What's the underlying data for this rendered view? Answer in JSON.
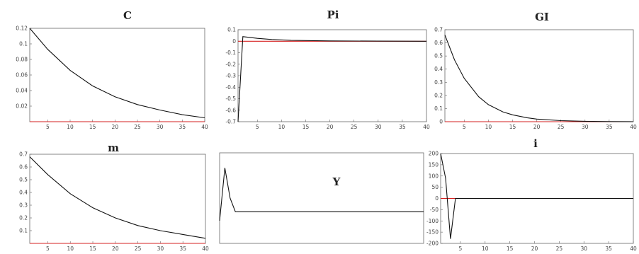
{
  "colors": {
    "steady_state": "#d62020",
    "response": "#111111"
  },
  "chart_data": [
    {
      "type": "line",
      "title": "C",
      "xlim": [
        1,
        40
      ],
      "ylim": [
        0,
        0.12
      ],
      "xticks": [
        5,
        10,
        15,
        20,
        25,
        30,
        35,
        40
      ],
      "yticks": [
        0.02,
        0.04,
        0.06,
        0.08,
        0.1,
        0.12
      ],
      "ytick_labels": [
        "0.02",
        "0.04",
        "0.06",
        "0.08",
        "0.1",
        "0.12"
      ],
      "series": [
        {
          "color": "#d62020",
          "x": [
            1,
            40
          ],
          "y": [
            0,
            0
          ]
        },
        {
          "color": "#111111",
          "x": [
            1,
            5,
            10,
            15,
            20,
            25,
            30,
            35,
            40
          ],
          "y": [
            0.12,
            0.093,
            0.066,
            0.046,
            0.032,
            0.022,
            0.015,
            0.009,
            0.005
          ]
        }
      ]
    },
    {
      "type": "line",
      "title": "Pi",
      "xlim": [
        1,
        40
      ],
      "ylim": [
        -0.7,
        0.1
      ],
      "xticks": [
        5,
        10,
        15,
        20,
        25,
        30,
        35,
        40
      ],
      "yticks": [
        0.1,
        0,
        -0.1,
        -0.2,
        -0.3,
        -0.4,
        -0.5,
        -0.6,
        -0.7
      ],
      "ytick_labels": [
        "0.1",
        "0",
        "-0.1",
        "-0.2",
        "-0.3",
        "-0.4",
        "-0.5",
        "-0.6",
        "-0.7"
      ],
      "series": [
        {
          "color": "#d62020",
          "x": [
            1,
            40
          ],
          "y": [
            0,
            0
          ]
        },
        {
          "color": "#111111",
          "x": [
            1,
            2,
            3,
            5,
            8,
            12,
            20,
            30,
            40
          ],
          "y": [
            -0.7,
            0.04,
            0.035,
            0.025,
            0.015,
            0.008,
            0.003,
            0.001,
            0
          ]
        }
      ]
    },
    {
      "type": "line",
      "title": "GI",
      "xlim": [
        1,
        40
      ],
      "ylim": [
        0,
        0.7
      ],
      "xticks": [
        5,
        10,
        15,
        20,
        25,
        30,
        35,
        40
      ],
      "yticks": [
        0,
        0.1,
        0.2,
        0.3,
        0.4,
        0.5,
        0.6,
        0.7
      ],
      "ytick_labels": [
        "0",
        "0.1",
        "0.2",
        "0.3",
        "0.4",
        "0.5",
        "0.6",
        "0.7"
      ],
      "series": [
        {
          "color": "#d62020",
          "x": [
            1,
            40
          ],
          "y": [
            0,
            0
          ]
        },
        {
          "color": "#111111",
          "x": [
            1,
            3,
            5,
            8,
            10,
            13,
            15,
            18,
            20,
            25,
            30,
            35,
            40
          ],
          "y": [
            0.66,
            0.47,
            0.33,
            0.19,
            0.13,
            0.075,
            0.052,
            0.03,
            0.02,
            0.008,
            0.003,
            0.001,
            0
          ]
        }
      ]
    },
    {
      "type": "line",
      "title": "m",
      "xlim": [
        1,
        40
      ],
      "ylim": [
        0,
        0.7
      ],
      "xticks": [
        5,
        10,
        15,
        20,
        25,
        30,
        35,
        40
      ],
      "yticks": [
        0.1,
        0.2,
        0.3,
        0.4,
        0.5,
        0.6,
        0.7
      ],
      "ytick_labels": [
        "0.1",
        "0.2",
        "0.3",
        "0.4",
        "0.5",
        "0.6",
        "0.7"
      ],
      "series": [
        {
          "color": "#d62020",
          "x": [
            1,
            40
          ],
          "y": [
            0,
            0
          ]
        },
        {
          "color": "#111111",
          "x": [
            1,
            5,
            10,
            15,
            20,
            25,
            30,
            35,
            40
          ],
          "y": [
            0.68,
            0.54,
            0.39,
            0.28,
            0.2,
            0.14,
            0.1,
            0.07,
            0.04
          ]
        }
      ]
    },
    {
      "type": "line",
      "title": "Y",
      "xlim": [
        1,
        40
      ],
      "ylim": [
        0,
        1.2
      ],
      "xticks": [],
      "yticks": [],
      "ytick_labels": [],
      "series": [
        {
          "color": "#111111",
          "x": [
            1,
            2,
            3,
            4,
            40
          ],
          "y": [
            0.3,
            1.0,
            0.6,
            0.42,
            0.42
          ]
        }
      ]
    },
    {
      "type": "line",
      "title": "i",
      "xlim": [
        1,
        40
      ],
      "ylim": [
        -200,
        200
      ],
      "xticks": [
        5,
        10,
        15,
        20,
        25,
        30,
        35,
        40
      ],
      "yticks": [
        200,
        150,
        100,
        50,
        0,
        -50,
        -100,
        -150,
        -200
      ],
      "ytick_labels": [
        "200",
        "150",
        "100",
        "50",
        "0",
        "-50",
        "-100",
        "-150",
        "-200"
      ],
      "series": [
        {
          "color": "#d62020",
          "x": [
            1,
            40
          ],
          "y": [
            0,
            0
          ]
        },
        {
          "color": "#111111",
          "x": [
            1,
            2,
            3,
            4,
            40
          ],
          "y": [
            200,
            90,
            -180,
            0,
            0
          ]
        }
      ]
    }
  ]
}
